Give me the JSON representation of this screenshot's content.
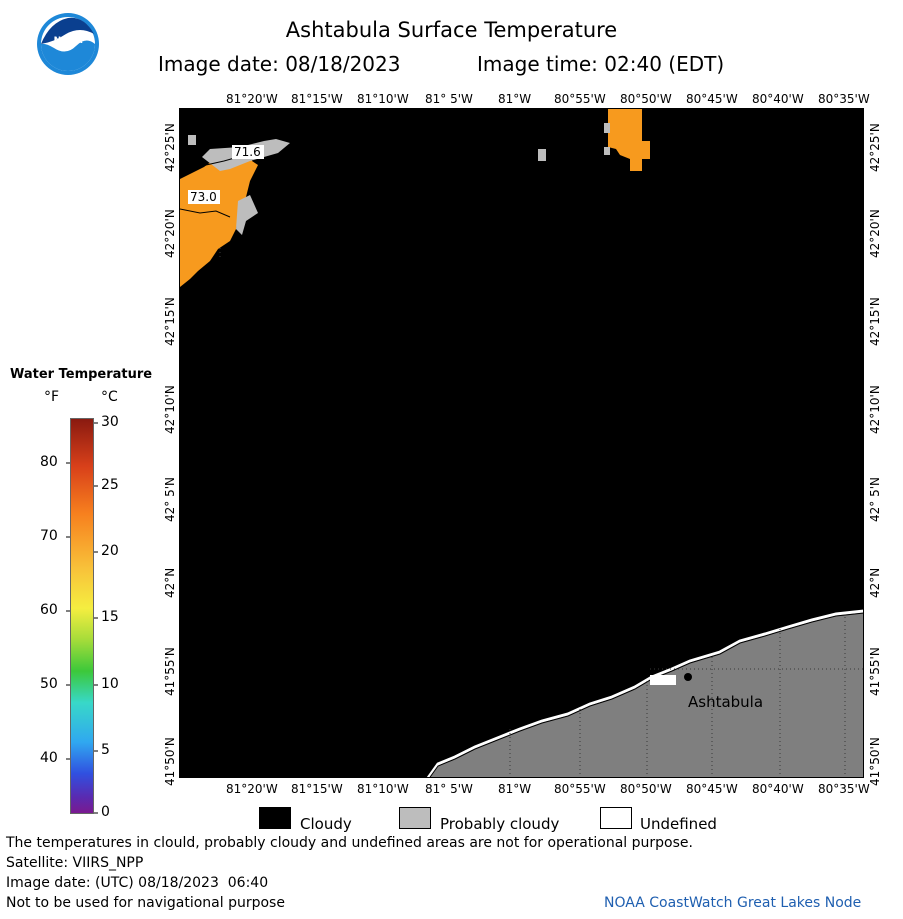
{
  "header": {
    "title": "Ashtabula Surface Temperature",
    "image_date_label": "Image date: 08/18/2023",
    "image_time_label": "Image time: 02:40 (EDT)"
  },
  "logo": {
    "text": "NOAA"
  },
  "map": {
    "top_lon_labels": [
      "81°20'W",
      "81°15'W",
      "81°10'W",
      "81° 5'W",
      "81°W",
      "80°55'W",
      "80°50'W",
      "80°45'W",
      "80°40'W",
      "80°35'W"
    ],
    "bottom_lon_labels": [
      "81°20'W",
      "81°15'W",
      "81°10'W",
      "81° 5'W",
      "81°W",
      "80°55'W",
      "80°50'W",
      "80°45'W",
      "80°40'W",
      "80°35'W"
    ],
    "lat_labels": [
      "42°25'N",
      "42°20'N",
      "42°15'N",
      "42°10'N",
      "42° 5'N",
      "42°N",
      "41°55'N",
      "41°50'N"
    ],
    "temp_labels": [
      "71.6",
      "73.0"
    ],
    "place_label": "Ashtabula",
    "colors": {
      "cloud": "#000000",
      "land": "#7f7f7f",
      "probably_cloudy": "#bdbdbd",
      "warm_water": "#f79a1e"
    }
  },
  "legend": {
    "title": "Water Temperature",
    "unit_f": "°F",
    "unit_c": "°C",
    "f_ticks": [
      "80",
      "70",
      "60",
      "50",
      "40"
    ],
    "c_ticks": [
      "30",
      "25",
      "20",
      "15",
      "10",
      "5",
      "0"
    ]
  },
  "key": {
    "cloudy": "Cloudy",
    "probably_cloudy": "Probably cloudy",
    "undefined": "Undefined"
  },
  "footer": {
    "line1": "The temperatures in clould, probably cloudy and undefined areas are not for operational purpose.",
    "line2": "Satellite: VIIRS_NPP",
    "line3": "Image date: (UTC) 08/18/2023  06:40",
    "line4": "Not to be used for navigational purpose",
    "credit": "NOAA CoastWatch Great Lakes Node"
  }
}
